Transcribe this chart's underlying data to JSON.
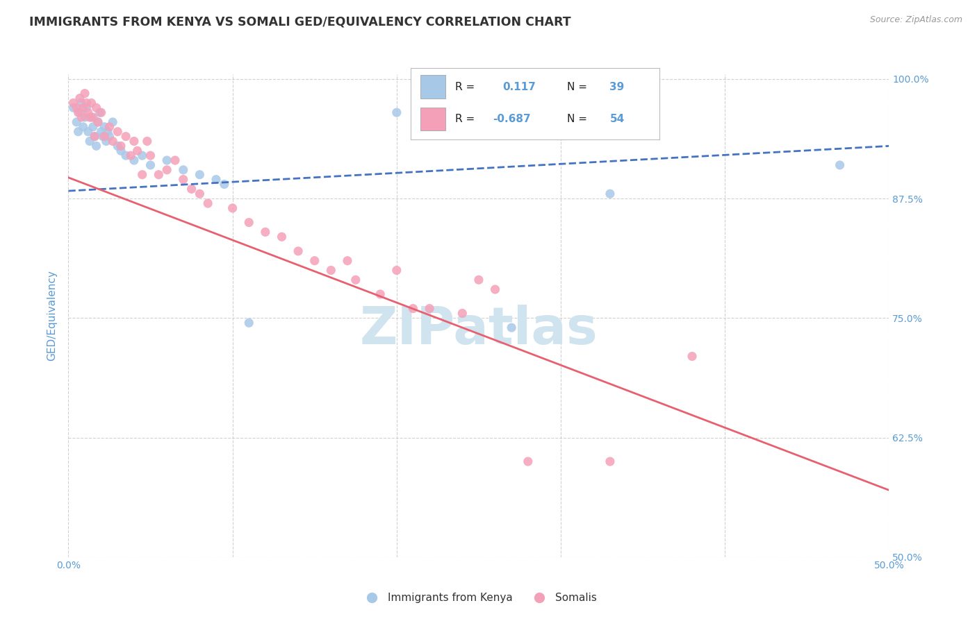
{
  "title": "IMMIGRANTS FROM KENYA VS SOMALI GED/EQUIVALENCY CORRELATION CHART",
  "source_text": "Source: ZipAtlas.com",
  "ylabel": "GED/Equivalency",
  "xmin": 0.0,
  "xmax": 0.5,
  "ymin": 0.5,
  "ymax": 1.005,
  "yticks": [
    0.5,
    0.625,
    0.75,
    0.875,
    1.0
  ],
  "ytick_labels": [
    "50.0%",
    "62.5%",
    "75.0%",
    "87.5%",
    "100.0%"
  ],
  "xticks": [
    0.0,
    0.1,
    0.2,
    0.3,
    0.4,
    0.5
  ],
  "xtick_labels": [
    "0.0%",
    "",
    "",
    "",
    "",
    "50.0%"
  ],
  "kenya_color": "#a8c8e8",
  "somali_color": "#f4a0b8",
  "kenya_line_color": "#4472c4",
  "somali_line_color": "#e86070",
  "watermark_color": "#d0e4f0",
  "background_color": "#ffffff",
  "grid_color": "#cccccc",
  "title_color": "#333333",
  "axis_label_color": "#5b9bd5",
  "kenya_scatter": [
    [
      0.003,
      0.97
    ],
    [
      0.005,
      0.955
    ],
    [
      0.006,
      0.945
    ],
    [
      0.007,
      0.965
    ],
    [
      0.008,
      0.975
    ],
    [
      0.009,
      0.95
    ],
    [
      0.01,
      0.96
    ],
    [
      0.011,
      0.97
    ],
    [
      0.012,
      0.945
    ],
    [
      0.013,
      0.935
    ],
    [
      0.014,
      0.96
    ],
    [
      0.015,
      0.95
    ],
    [
      0.016,
      0.94
    ],
    [
      0.017,
      0.93
    ],
    [
      0.018,
      0.955
    ],
    [
      0.019,
      0.965
    ],
    [
      0.02,
      0.945
    ],
    [
      0.021,
      0.94
    ],
    [
      0.022,
      0.95
    ],
    [
      0.023,
      0.935
    ],
    [
      0.024,
      0.945
    ],
    [
      0.025,
      0.94
    ],
    [
      0.027,
      0.955
    ],
    [
      0.03,
      0.93
    ],
    [
      0.032,
      0.925
    ],
    [
      0.035,
      0.92
    ],
    [
      0.04,
      0.915
    ],
    [
      0.045,
      0.92
    ],
    [
      0.05,
      0.91
    ],
    [
      0.06,
      0.915
    ],
    [
      0.07,
      0.905
    ],
    [
      0.08,
      0.9
    ],
    [
      0.09,
      0.895
    ],
    [
      0.095,
      0.89
    ],
    [
      0.11,
      0.745
    ],
    [
      0.2,
      0.965
    ],
    [
      0.27,
      0.74
    ],
    [
      0.33,
      0.88
    ],
    [
      0.47,
      0.91
    ]
  ],
  "somali_scatter": [
    [
      0.003,
      0.975
    ],
    [
      0.005,
      0.97
    ],
    [
      0.006,
      0.965
    ],
    [
      0.007,
      0.98
    ],
    [
      0.008,
      0.96
    ],
    [
      0.009,
      0.97
    ],
    [
      0.01,
      0.985
    ],
    [
      0.011,
      0.975
    ],
    [
      0.012,
      0.965
    ],
    [
      0.013,
      0.96
    ],
    [
      0.014,
      0.975
    ],
    [
      0.015,
      0.96
    ],
    [
      0.016,
      0.94
    ],
    [
      0.017,
      0.97
    ],
    [
      0.018,
      0.955
    ],
    [
      0.02,
      0.965
    ],
    [
      0.022,
      0.94
    ],
    [
      0.025,
      0.95
    ],
    [
      0.027,
      0.935
    ],
    [
      0.03,
      0.945
    ],
    [
      0.032,
      0.93
    ],
    [
      0.035,
      0.94
    ],
    [
      0.038,
      0.92
    ],
    [
      0.04,
      0.935
    ],
    [
      0.042,
      0.925
    ],
    [
      0.045,
      0.9
    ],
    [
      0.048,
      0.935
    ],
    [
      0.05,
      0.92
    ],
    [
      0.055,
      0.9
    ],
    [
      0.06,
      0.905
    ],
    [
      0.065,
      0.915
    ],
    [
      0.07,
      0.895
    ],
    [
      0.075,
      0.885
    ],
    [
      0.08,
      0.88
    ],
    [
      0.085,
      0.87
    ],
    [
      0.1,
      0.865
    ],
    [
      0.11,
      0.85
    ],
    [
      0.12,
      0.84
    ],
    [
      0.13,
      0.835
    ],
    [
      0.14,
      0.82
    ],
    [
      0.15,
      0.81
    ],
    [
      0.16,
      0.8
    ],
    [
      0.17,
      0.81
    ],
    [
      0.175,
      0.79
    ],
    [
      0.19,
      0.775
    ],
    [
      0.2,
      0.8
    ],
    [
      0.21,
      0.76
    ],
    [
      0.22,
      0.76
    ],
    [
      0.24,
      0.755
    ],
    [
      0.25,
      0.79
    ],
    [
      0.26,
      0.78
    ],
    [
      0.28,
      0.6
    ],
    [
      0.33,
      0.6
    ],
    [
      0.38,
      0.71
    ]
  ]
}
